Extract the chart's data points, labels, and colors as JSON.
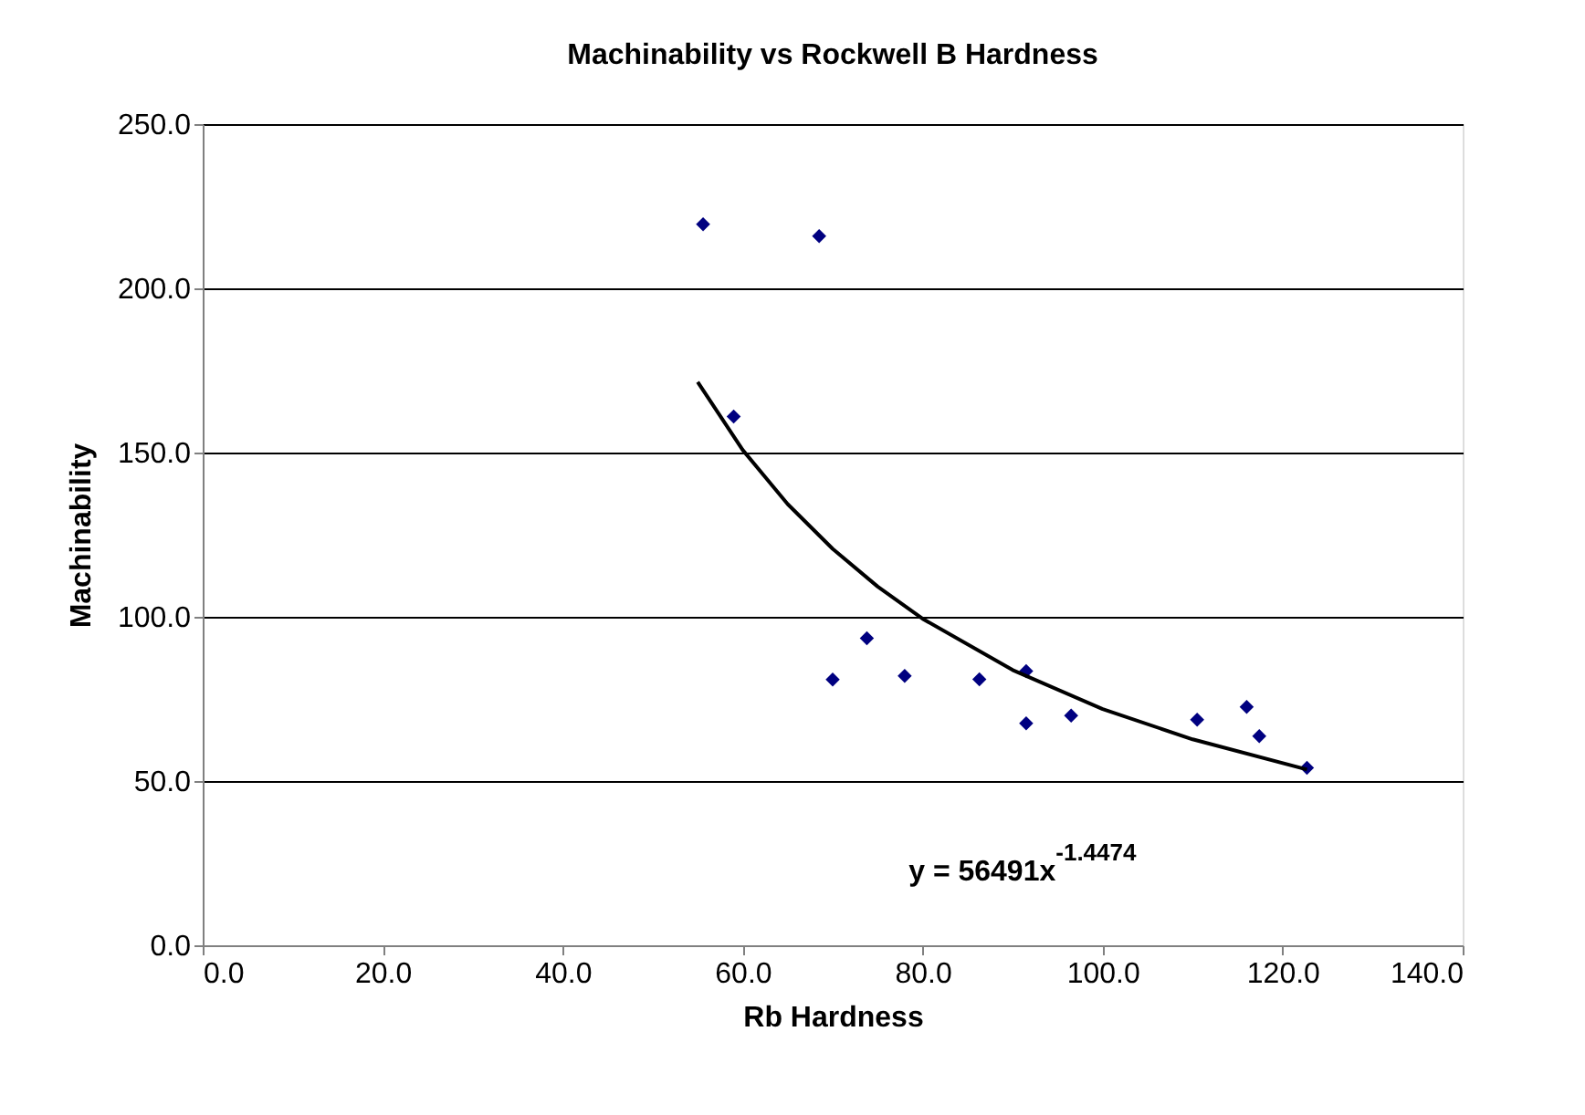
{
  "chart_data": {
    "type": "scatter",
    "title": "Machinability vs Rockwell B Hardness",
    "xlabel": "Rb Hardness",
    "ylabel": "Machinability",
    "xlim": [
      0,
      140
    ],
    "xticks": [
      {
        "value": 0,
        "label": "0.0"
      },
      {
        "value": 20,
        "label": "20.0"
      },
      {
        "value": 40,
        "label": "40.0"
      },
      {
        "value": 60,
        "label": "60.0"
      },
      {
        "value": 80,
        "label": "80.0"
      },
      {
        "value": 100,
        "label": "100.0"
      },
      {
        "value": 120,
        "label": "120.0"
      },
      {
        "value": 140,
        "label": "140.0"
      }
    ],
    "ylim": [
      0,
      250
    ],
    "yticks": [
      {
        "value": 0,
        "label": "0.0"
      },
      {
        "value": 50,
        "label": "50.0"
      },
      {
        "value": 100,
        "label": "100.0"
      },
      {
        "value": 150,
        "label": "150.0"
      },
      {
        "value": 200,
        "label": "200.0"
      },
      {
        "value": 250,
        "label": "250.0"
      }
    ],
    "grid": "y",
    "series": [
      {
        "color": "#000080",
        "marker": "diamond",
        "x": [
          55.6,
          68.5,
          59.0,
          70.0,
          73.8,
          78.0,
          86.3,
          91.5,
          91.5,
          96.5,
          110.5,
          116.0,
          117.4,
          122.7
        ],
        "values": [
          219.5,
          215.9,
          161,
          80.9,
          93.5,
          82,
          81,
          83.5,
          67.6,
          69.9,
          68.7,
          72.6,
          63.7,
          54
        ]
      },
      {
        "type": "line",
        "color": "#000000",
        "marker": "none",
        "line_style": "solid",
        "x": [
          55,
          60,
          65,
          70,
          75,
          80,
          90,
          100,
          110,
          122.7
        ],
        "values": [
          171.5,
          150.8,
          134.3,
          120.7,
          109.2,
          99.4,
          83.8,
          71.9,
          62.7,
          53.5
        ]
      }
    ],
    "annotations": [
      "y = 56491x$^{-1.4474}$"
    ]
  }
}
